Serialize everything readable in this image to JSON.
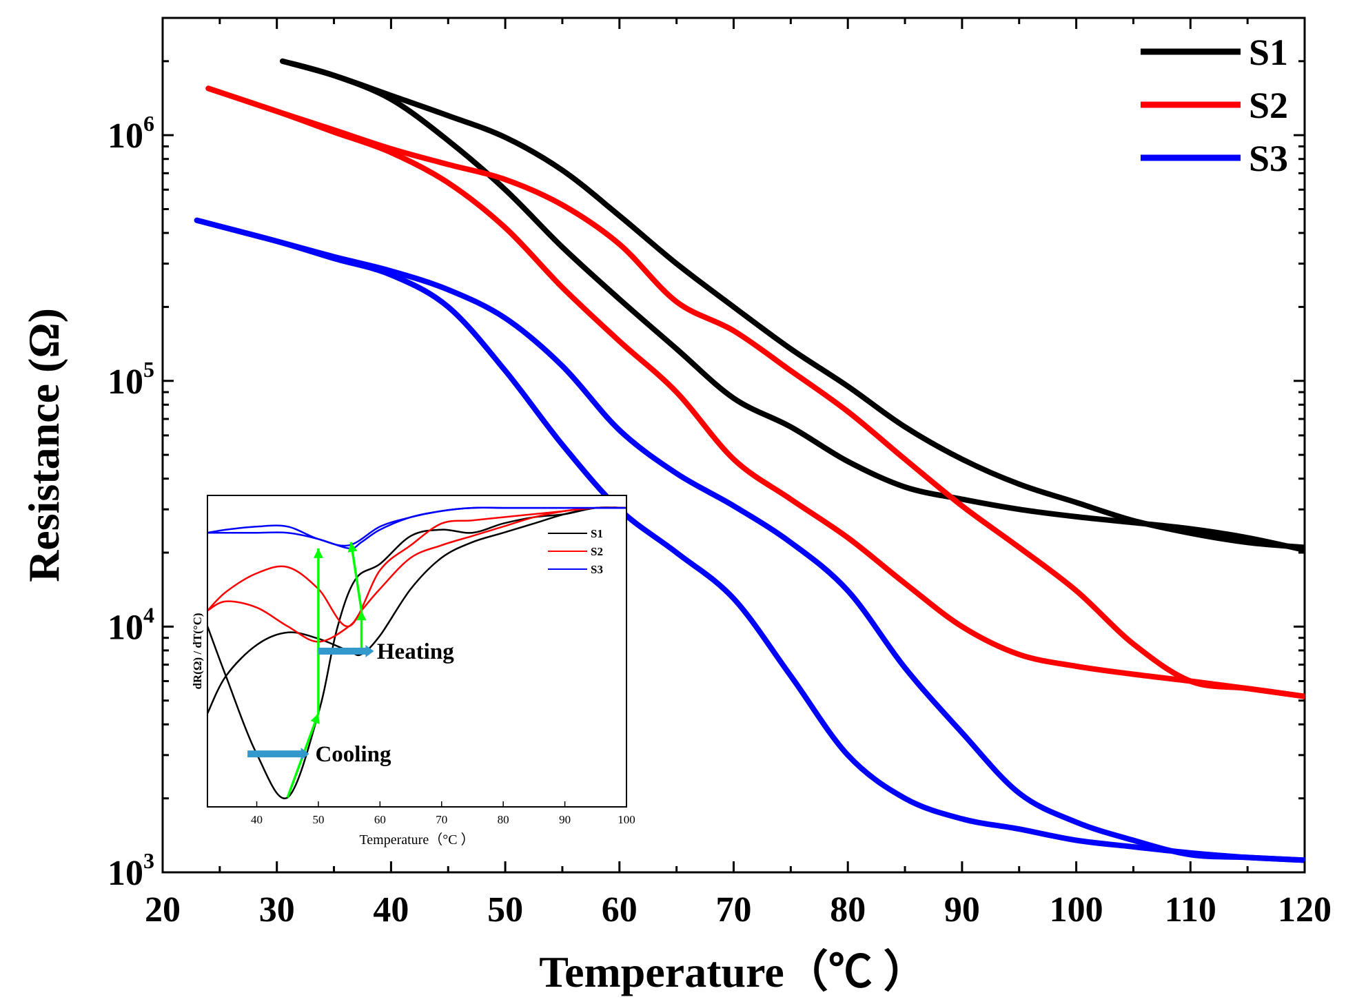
{
  "chart_data": [
    {
      "type": "line",
      "title": "",
      "xlabel": "Temperature（℃ ）",
      "ylabel": "Resistance (Ω)",
      "xlim": [
        20,
        120
      ],
      "ylim": [
        1000,
        3000000
      ],
      "yscale": "log",
      "xticks": [
        20,
        30,
        40,
        50,
        60,
        70,
        80,
        90,
        100,
        110,
        120
      ],
      "xtick_labels": [
        "20",
        "30",
        "40",
        "50",
        "60",
        "70",
        "80",
        "90",
        "100",
        "110",
        "120"
      ],
      "yticks": [
        1000,
        10000,
        100000,
        1000000
      ],
      "ytick_base": "10",
      "ytick_exps": [
        "3",
        "4",
        "5",
        "6"
      ],
      "legend_position": "top-right",
      "series": [
        {
          "name": "S1",
          "color": "#000000",
          "branch": "cooling",
          "x": [
            30.5,
            35,
            40,
            45,
            50,
            55,
            60,
            65,
            70,
            75,
            80,
            85,
            90,
            95,
            100,
            105,
            110,
            115,
            120
          ],
          "y": [
            2000000,
            1750000,
            1450000,
            1200000,
            980000,
            720000,
            470000,
            300000,
            200000,
            135000,
            95000,
            65000,
            48000,
            38000,
            32000,
            27000,
            24000,
            22000,
            21000
          ]
        },
        {
          "name": "S1",
          "color": "#000000",
          "branch": "heating",
          "x": [
            30.5,
            35,
            40,
            45,
            50,
            55,
            60,
            65,
            70,
            75,
            80,
            85,
            90,
            95,
            100,
            105,
            110,
            115,
            120
          ],
          "y": [
            2000000,
            1750000,
            1400000,
            950000,
            600000,
            350000,
            215000,
            135000,
            85000,
            65000,
            47000,
            37000,
            33000,
            30000,
            28000,
            26500,
            25000,
            23000,
            20500
          ]
        },
        {
          "name": "S2",
          "color": "#ff0000",
          "branch": "cooling",
          "x": [
            24,
            30,
            35,
            40,
            45,
            50,
            55,
            60,
            65,
            70,
            75,
            80,
            85,
            90,
            95,
            100,
            105,
            110,
            115,
            120
          ],
          "y": [
            1550000,
            1250000,
            1050000,
            880000,
            760000,
            660000,
            520000,
            360000,
            210000,
            160000,
            110000,
            75000,
            48000,
            31000,
            21000,
            14000,
            8500,
            6000,
            5600,
            5200
          ]
        },
        {
          "name": "S2",
          "color": "#ff0000",
          "branch": "heating",
          "x": [
            24,
            30,
            35,
            40,
            45,
            50,
            55,
            60,
            65,
            70,
            75,
            80,
            85,
            90,
            95,
            100,
            105,
            110,
            115,
            120
          ],
          "y": [
            1550000,
            1250000,
            1030000,
            850000,
            640000,
            420000,
            240000,
            145000,
            90000,
            48000,
            33000,
            23000,
            15000,
            10000,
            7700,
            6900,
            6400,
            6000,
            5600,
            5200
          ]
        },
        {
          "name": "S3",
          "color": "#0000ff",
          "branch": "cooling",
          "x": [
            23,
            30,
            35,
            40,
            45,
            50,
            55,
            60,
            65,
            70,
            75,
            80,
            85,
            90,
            95,
            100,
            105,
            110,
            115,
            120
          ],
          "y": [
            450000,
            370000,
            320000,
            280000,
            235000,
            180000,
            115000,
            63000,
            42000,
            31000,
            22000,
            14000,
            6800,
            3700,
            2100,
            1600,
            1350,
            1180,
            1150,
            1120
          ]
        },
        {
          "name": "S3",
          "color": "#0000ff",
          "branch": "heating",
          "x": [
            23,
            30,
            35,
            40,
            45,
            50,
            55,
            60,
            65,
            70,
            75,
            80,
            85,
            90,
            95,
            100,
            105,
            110,
            115,
            120
          ],
          "y": [
            450000,
            370000,
            315000,
            270000,
            200000,
            110000,
            55000,
            30000,
            20000,
            13000,
            6300,
            3000,
            2000,
            1650,
            1500,
            1350,
            1270,
            1200,
            1150,
            1120
          ]
        }
      ]
    },
    {
      "type": "line",
      "title": "",
      "inset": true,
      "xlabel": "Temperature（°C ）",
      "ylabel": "dR(Ω) / dT(°C)",
      "xlim": [
        32,
        100
      ],
      "ylim": [
        0,
        1
      ],
      "xticks": [
        40,
        50,
        60,
        70,
        80,
        90,
        100
      ],
      "xtick_labels": [
        "40",
        "50",
        "60",
        "70",
        "80",
        "90",
        "100"
      ],
      "legend_position": "top-right",
      "series": [
        {
          "name": "S1",
          "color": "#000000",
          "branch": "cooling",
          "x": [
            32,
            35,
            40,
            45,
            50,
            53,
            56,
            60,
            65,
            70,
            75,
            80,
            85,
            90,
            95,
            100
          ],
          "y": [
            0.58,
            0.42,
            0.17,
            0.03,
            0.3,
            0.57,
            0.73,
            0.78,
            0.87,
            0.89,
            0.88,
            0.91,
            0.93,
            0.94,
            0.96,
            0.96
          ]
        },
        {
          "name": "S1",
          "color": "#000000",
          "branch": "heating",
          "x": [
            32,
            35,
            40,
            45,
            50,
            55,
            57,
            60,
            65,
            70,
            75,
            80,
            85,
            90,
            95,
            100
          ],
          "y": [
            0.3,
            0.42,
            0.52,
            0.56,
            0.54,
            0.5,
            0.49,
            0.55,
            0.7,
            0.8,
            0.85,
            0.88,
            0.91,
            0.94,
            0.96,
            0.96
          ]
        },
        {
          "name": "S2",
          "color": "#ff0000",
          "branch": "cooling",
          "x": [
            32,
            35,
            40,
            45,
            50,
            55,
            60,
            65,
            70,
            75,
            80,
            85,
            90,
            95,
            100
          ],
          "y": [
            0.63,
            0.69,
            0.75,
            0.77,
            0.7,
            0.58,
            0.76,
            0.84,
            0.91,
            0.92,
            0.93,
            0.94,
            0.95,
            0.96,
            0.96
          ]
        },
        {
          "name": "S2",
          "color": "#ff0000",
          "branch": "heating",
          "x": [
            32,
            35,
            40,
            45,
            50,
            55,
            57,
            60,
            65,
            70,
            75,
            80,
            85,
            90,
            95,
            100
          ],
          "y": [
            0.63,
            0.66,
            0.64,
            0.58,
            0.53,
            0.58,
            0.63,
            0.7,
            0.8,
            0.84,
            0.87,
            0.9,
            0.93,
            0.95,
            0.96,
            0.96
          ]
        },
        {
          "name": "S3",
          "color": "#0000ff",
          "branch": "cooling",
          "x": [
            32,
            35,
            40,
            45,
            50,
            55,
            60,
            65,
            70,
            75,
            80,
            85,
            90,
            95,
            100
          ],
          "y": [
            0.88,
            0.89,
            0.9,
            0.9,
            0.86,
            0.84,
            0.9,
            0.93,
            0.95,
            0.96,
            0.96,
            0.96,
            0.96,
            0.96,
            0.96
          ]
        },
        {
          "name": "S3",
          "color": "#0000ff",
          "branch": "heating",
          "x": [
            32,
            35,
            40,
            45,
            50,
            55,
            57,
            60,
            65,
            70,
            75,
            80,
            85,
            90,
            95,
            100
          ],
          "y": [
            0.88,
            0.88,
            0.88,
            0.88,
            0.86,
            0.83,
            0.85,
            0.89,
            0.93,
            0.95,
            0.96,
            0.96,
            0.96,
            0.96,
            0.96,
            0.96
          ]
        }
      ],
      "annotations": [
        {
          "text": "Cooling",
          "x": 39,
          "y": 0.17
        },
        {
          "text": "Heating",
          "x": 48,
          "y": 0.5
        }
      ],
      "arrow_color": "#00ff00",
      "marker_color": "#3399cc"
    }
  ]
}
